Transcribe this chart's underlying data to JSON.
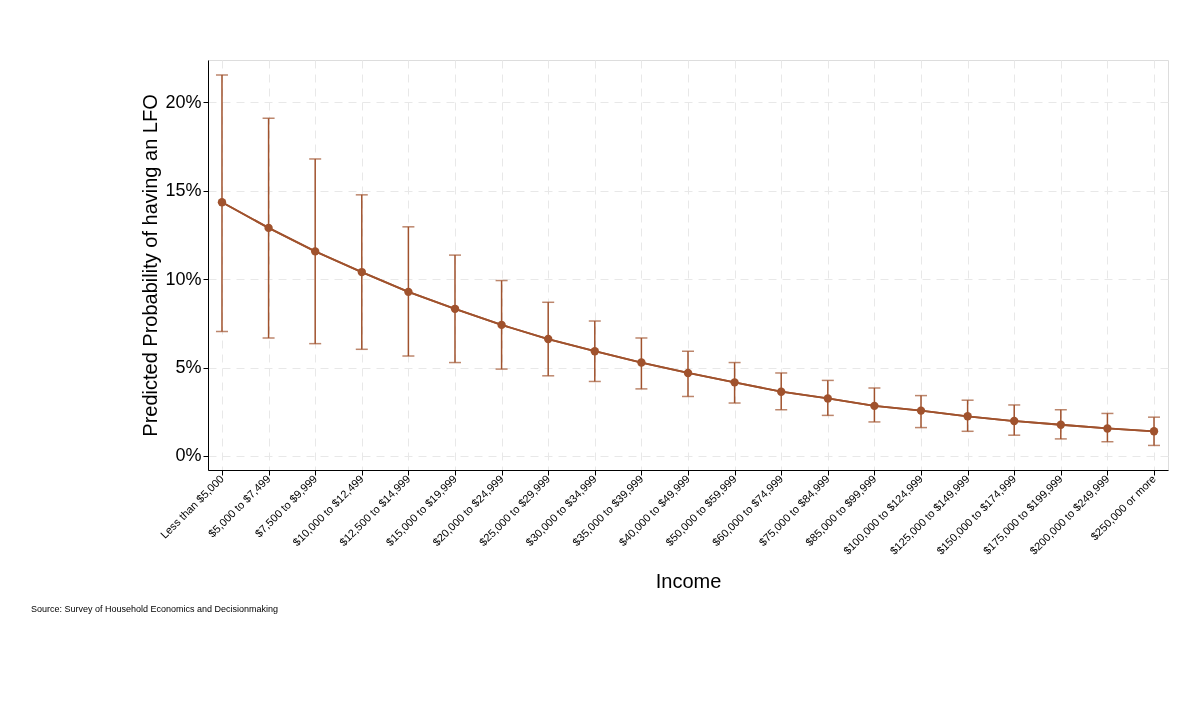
{
  "chart_data": {
    "type": "line",
    "xlabel": "Income",
    "ylabel": "Predicted Probability of having an LFO",
    "categories": [
      "Less than $5,000",
      "$5,000 to $7,499",
      "$7,500 to $9,999",
      "$10,000 to $12,499",
      "$12,500 to $14,999",
      "$15,000 to $19,999",
      "$20,000 to $24,999",
      "$25,000 to $29,999",
      "$30,000 to $34,999",
      "$35,000 to $39,999",
      "$40,000 to $49,999",
      "$50,000 to $59,999",
      "$60,000 to $74,999",
      "$75,000 to $84,999",
      "$85,000 to $99,999",
      "$100,000 to $124,999",
      "$125,000 to $149,999",
      "$150,000 to $174,999",
      "$175,000 to $199,999",
      "$200,000 to $249,999",
      "$250,000 or more"
    ],
    "series": [
      {
        "color": "#a0522d",
        "values": [
          14.35,
          12.9,
          11.57,
          10.4,
          9.28,
          8.32,
          7.41,
          6.61,
          5.92,
          5.28,
          4.69,
          4.16,
          3.63,
          3.25,
          2.83,
          2.56,
          2.24,
          1.97,
          1.76,
          1.55,
          1.39
        ],
        "errors": [
          [
            7.04,
            21.55
          ],
          [
            6.67,
            19.1
          ],
          [
            6.35,
            16.8
          ],
          [
            6.03,
            14.77
          ],
          [
            5.65,
            12.96
          ],
          [
            5.28,
            11.36
          ],
          [
            4.91,
            9.92
          ],
          [
            4.53,
            8.69
          ],
          [
            4.21,
            7.63
          ],
          [
            3.79,
            6.67
          ],
          [
            3.36,
            5.92
          ],
          [
            2.99,
            5.28
          ],
          [
            2.61,
            4.69
          ],
          [
            2.29,
            4.27
          ],
          [
            1.92,
            3.84
          ],
          [
            1.6,
            3.41
          ],
          [
            1.39,
            3.15
          ],
          [
            1.17,
            2.88
          ],
          [
            0.96,
            2.61
          ],
          [
            0.8,
            2.4
          ],
          [
            0.59,
            2.19
          ]
        ]
      }
    ],
    "ylim": [
      -0.8,
      22.4
    ],
    "yticks": [
      {
        "value": 0,
        "label": "0%"
      },
      {
        "value": 5,
        "label": "5%"
      },
      {
        "value": 10,
        "label": "10%"
      },
      {
        "value": 15,
        "label": "15%"
      },
      {
        "value": 20,
        "label": "20%"
      }
    ],
    "grid": true,
    "marker": "circle",
    "line_style": "solid",
    "annotations": [
      "Source: Survey of Household Economics and Decisionmaking"
    ]
  }
}
